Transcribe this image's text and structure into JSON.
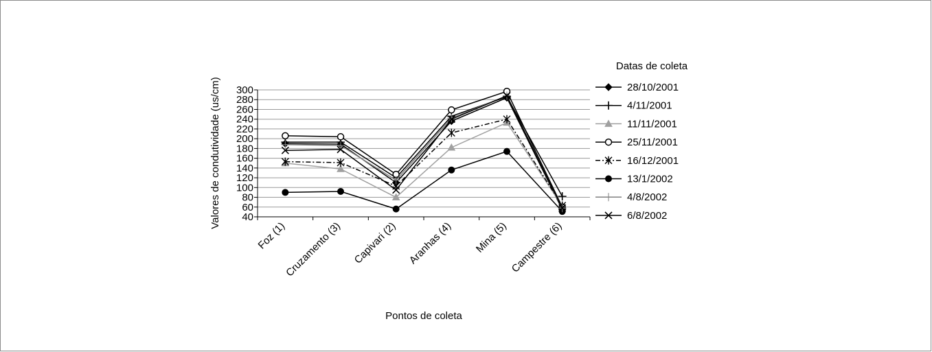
{
  "chart_data": {
    "type": "line",
    "title": "",
    "xlabel": "Pontos de coleta",
    "ylabel": "Valores de condutividade (us/cm)",
    "ylim": [
      40,
      300
    ],
    "yticks": [
      40,
      60,
      80,
      100,
      120,
      140,
      160,
      180,
      200,
      220,
      240,
      260,
      280,
      300
    ],
    "grid": true,
    "legend_title": "Datas de coleta",
    "legend_position": "right",
    "categories": [
      "Foz (1)",
      "Cruzamento (3)",
      "Capivari (2)",
      "Aranhas (4)",
      "Mina (5)",
      "Campestre (6)"
    ],
    "series": [
      {
        "name": "28/10/2001",
        "values": [
          190,
          189,
          110,
          236,
          284,
          55
        ],
        "color": "#000000",
        "marker": "diamond",
        "dash": ""
      },
      {
        "name": "4/11/2001",
        "values": [
          193,
          193,
          120,
          246,
          286,
          82
        ],
        "color": "#000000",
        "marker": "plus",
        "dash": ""
      },
      {
        "name": "11/11/2001",
        "values": [
          150,
          138,
          80,
          182,
          233,
          62
        ],
        "color": "#a0a0a0",
        "marker": "triangle",
        "dash": ""
      },
      {
        "name": "25/11/2001",
        "values": [
          206,
          204,
          127,
          259,
          297,
          60
        ],
        "color": "#000000",
        "marker": "circle-open",
        "dash": ""
      },
      {
        "name": "16/12/2001",
        "values": [
          153,
          151,
          103,
          212,
          240,
          63
        ],
        "color": "#000000",
        "marker": "asterisk",
        "dash": "7,3,2,3"
      },
      {
        "name": "13/1/2002",
        "values": [
          90,
          92,
          56,
          136,
          174,
          51
        ],
        "color": "#000000",
        "marker": "circle-filled",
        "dash": ""
      },
      {
        "name": "4/8/2002",
        "values": [
          188,
          186,
          115,
          242,
          288,
          58
        ],
        "color": "#808080",
        "marker": "plus-thin",
        "dash": ""
      },
      {
        "name": "6/8/2002",
        "values": [
          176,
          178,
          95,
          240,
          288,
          58
        ],
        "color": "#000000",
        "marker": "x",
        "dash": ""
      }
    ]
  }
}
